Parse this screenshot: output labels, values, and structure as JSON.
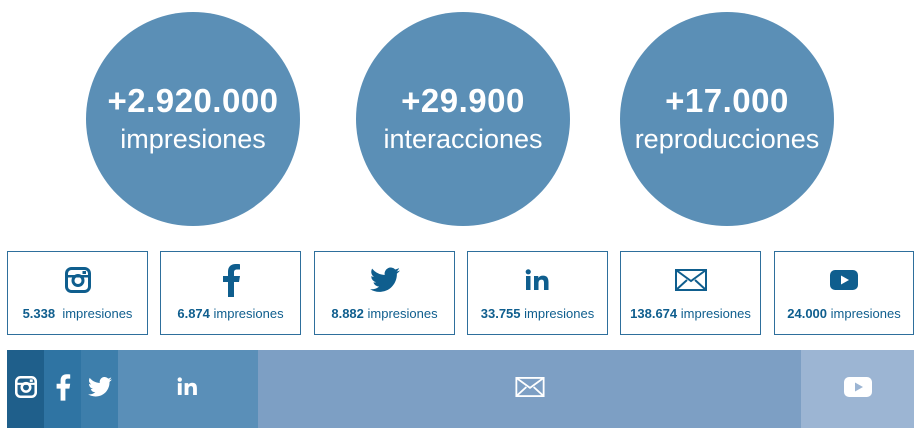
{
  "summary": [
    {
      "value": "+2.920.000",
      "label": "impresiones"
    },
    {
      "value": "+29.900",
      "label": "interacciones"
    },
    {
      "value": "+17.000",
      "label": "reproducciones"
    }
  ],
  "cards": [
    {
      "icon": "instagram-icon",
      "value": "5.338",
      "label": "impresiones"
    },
    {
      "icon": "facebook-icon",
      "value": "6.874",
      "label": "impresiones"
    },
    {
      "icon": "twitter-icon",
      "value": "8.882",
      "label": "impresiones"
    },
    {
      "icon": "linkedin-icon",
      "value": "33.755",
      "label": "impresiones"
    },
    {
      "icon": "mail-icon",
      "value": "138.674",
      "label": "impresiones"
    },
    {
      "icon": "youtube-icon",
      "value": "24.000",
      "label": "impresiones"
    }
  ],
  "share_bar": [
    {
      "icon": "instagram-icon",
      "color": "#1f5f8b"
    },
    {
      "icon": "facebook-icon",
      "color": "#2f74a3"
    },
    {
      "icon": "twitter-icon",
      "color": "#3d7eab"
    },
    {
      "icon": "linkedin-icon",
      "color": "#5a8fb8"
    },
    {
      "icon": "mail-icon",
      "color": "#7d9fc4"
    },
    {
      "icon": "youtube-icon",
      "color": "#9cb5d3"
    }
  ]
}
